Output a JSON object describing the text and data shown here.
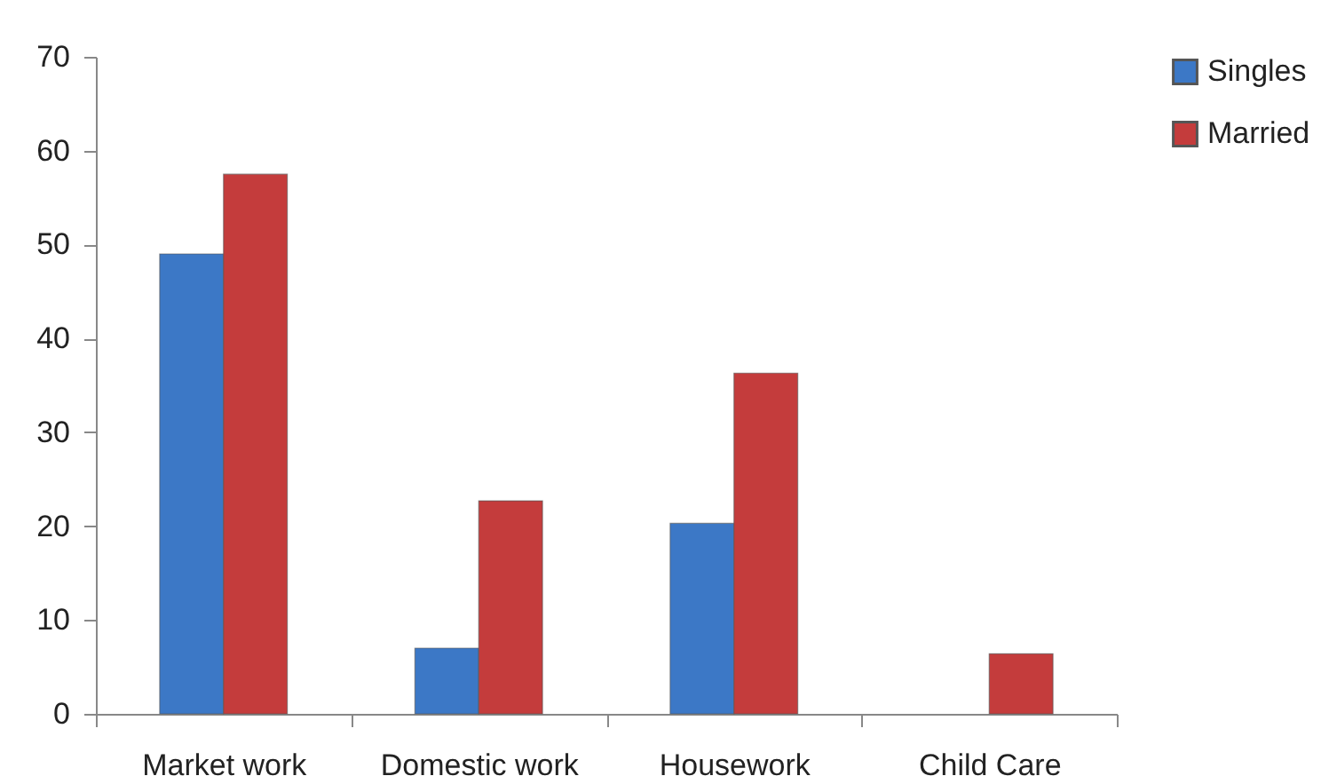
{
  "chart_data": {
    "type": "bar",
    "categories": [
      "Market work",
      "Domestic work",
      "Housework",
      "Child Care"
    ],
    "series": [
      {
        "name": "Singles",
        "color": "#3c78c6",
        "values": [
          49,
          7,
          20.3,
          null
        ]
      },
      {
        "name": "Married",
        "color": "#c43c3c",
        "values": [
          57.5,
          22.7,
          36.3,
          6.4
        ]
      }
    ],
    "ylim": [
      0,
      70
    ],
    "yticks": [
      0,
      10,
      20,
      30,
      40,
      50,
      60,
      70
    ],
    "grid": false,
    "legend": "right"
  }
}
